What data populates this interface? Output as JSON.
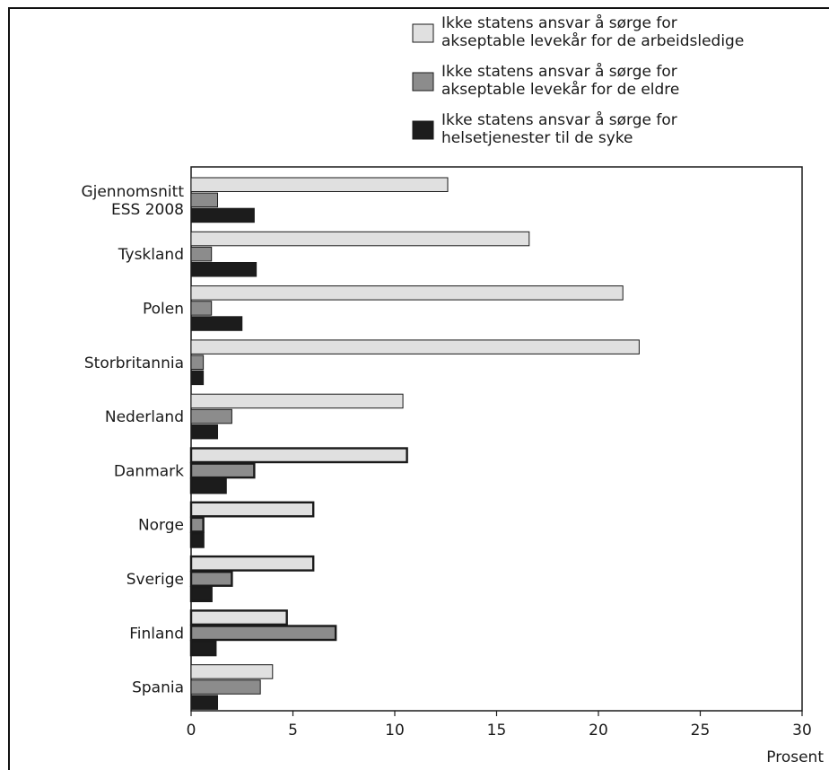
{
  "chart_data": {
    "type": "bar",
    "orientation": "horizontal",
    "categories": [
      [
        "Gjennomsnitt",
        "ESS 2008"
      ],
      [
        "Tyskland"
      ],
      [
        "Polen"
      ],
      [
        "Storbritannia"
      ],
      [
        "Nederland"
      ],
      [
        "Danmark"
      ],
      [
        "Norge"
      ],
      [
        "Sverige"
      ],
      [
        "Finland"
      ],
      [
        "Spania"
      ]
    ],
    "series": [
      {
        "name": [
          "Ikke statens ansvar å sørge for",
          "akseptable levekår for de arbeidsledige"
        ],
        "color": "#e0e0e0",
        "values": [
          12.6,
          16.6,
          21.2,
          22.0,
          10.4,
          10.6,
          6.0,
          6.0,
          4.7,
          4.0
        ]
      },
      {
        "name": [
          "Ikke statens ansvar å sørge for",
          "akseptable levekår for de eldre"
        ],
        "color": "#8c8c8c",
        "values": [
          1.3,
          1.0,
          1.0,
          0.6,
          2.0,
          3.1,
          0.6,
          2.0,
          7.1,
          3.4
        ]
      },
      {
        "name": [
          "Ikke statens ansvar å sørge for",
          "helsetjenester til de syke"
        ],
        "color": "#1c1c1c",
        "values": [
          3.1,
          3.2,
          2.5,
          0.6,
          1.3,
          1.7,
          0.6,
          1.0,
          1.2,
          1.3
        ]
      }
    ],
    "highlighted_categories": [
      "Danmark",
      "Norge",
      "Sverige",
      "Finland"
    ],
    "xlim": [
      0,
      30
    ],
    "xticks": [
      0,
      5,
      10,
      15,
      20,
      25,
      30
    ],
    "xlabel": "Prosent",
    "ylabel": "",
    "title": "",
    "grid": false,
    "legend_position": "top-right"
  }
}
